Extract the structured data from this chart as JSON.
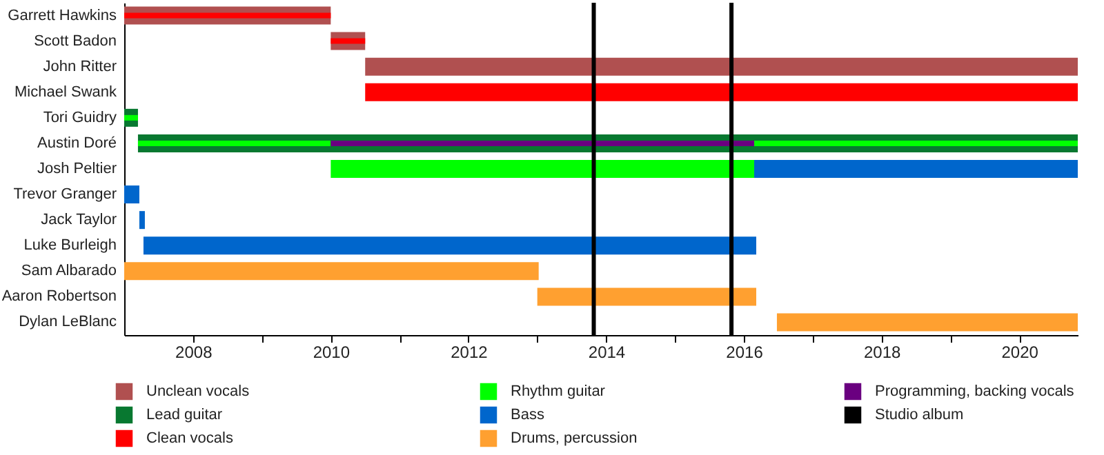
{
  "chart_data": {
    "type": "bar",
    "orientation": "horizontal",
    "legend": "bottom",
    "grid": false,
    "categories": [
      "Garrett Hawkins",
      "Scott Badon",
      "John Ritter",
      "Michael Swank",
      "Tori Guidry",
      "Austin Doré",
      "Josh Peltier",
      "Trevor Granger",
      "Jack Taylor",
      "Luke Burleigh",
      "Sam Albarado",
      "Aaron Robertson",
      "Dylan LeBlanc"
    ],
    "xlim": [
      2007,
      2020.85
    ],
    "xticks": [
      2008,
      {
        "value": 2009,
        "label": null
      },
      2010,
      {
        "value": 2011,
        "label": null
      },
      2012,
      {
        "value": 2013,
        "label": null
      },
      2014,
      {
        "value": 2015,
        "label": null
      },
      2016,
      {
        "value": 2017,
        "label": null
      },
      2018,
      {
        "value": 2019,
        "label": null
      },
      2020
    ],
    "series": [
      {
        "name": "Unclean vocals",
        "color": "#b05050",
        "base": [
          2007,
          2010,
          2010.5,
          null,
          null,
          null,
          null,
          null,
          null,
          null,
          null,
          null,
          null
        ],
        "values": [
          3,
          0.5,
          10.35,
          null,
          null,
          null,
          null,
          null,
          null,
          null,
          null,
          null,
          null
        ]
      },
      {
        "name": "Lead guitar",
        "color": "#087830",
        "base": [
          null,
          null,
          null,
          null,
          2007,
          2007.2,
          null,
          null,
          null,
          null,
          null,
          null,
          null
        ],
        "values": [
          null,
          null,
          null,
          null,
          0.2,
          13.65,
          null,
          null,
          null,
          null,
          null,
          null,
          null
        ]
      },
      {
        "name": "Clean vocals",
        "color": "#ff0000",
        "base": [
          2007,
          2010,
          null,
          2010.5,
          null,
          null,
          null,
          null,
          null,
          null,
          null,
          null,
          null
        ],
        "values": [
          3,
          0.5,
          null,
          10.35,
          null,
          null,
          null,
          null,
          null,
          null,
          null,
          null,
          null
        ]
      },
      {
        "name": "Rhythm guitar",
        "color": "#00ff00",
        "base": [
          null,
          null,
          null,
          null,
          2007,
          2007.2,
          2010,
          null,
          null,
          null,
          null,
          null,
          null
        ],
        "values": [
          null,
          null,
          null,
          null,
          0.2,
          2.8,
          6.15,
          null,
          null,
          null,
          null,
          null,
          null
        ]
      },
      {
        "name": "Bass",
        "color": "#0066cc",
        "base": [
          null,
          null,
          null,
          null,
          null,
          null,
          2016.15,
          2007,
          2007.22,
          2007.28,
          null,
          null,
          null
        ],
        "values": [
          null,
          null,
          null,
          null,
          null,
          null,
          4.7,
          0.22,
          0.08,
          8.9,
          null,
          null,
          null
        ]
      },
      {
        "name": "Drums, percussion",
        "color": "#ffa030",
        "base": [
          null,
          null,
          null,
          null,
          null,
          null,
          null,
          null,
          null,
          null,
          2007,
          2013,
          2016.48
        ],
        "values": [
          null,
          null,
          null,
          null,
          null,
          null,
          null,
          null,
          null,
          null,
          6.02,
          3.18,
          4.37
        ]
      },
      {
        "name": "Programming, backing vocals",
        "color": "#6a0080",
        "base": [
          null,
          null,
          null,
          null,
          null,
          2010,
          null,
          null,
          null,
          null,
          null,
          null,
          null
        ],
        "values": [
          null,
          null,
          null,
          null,
          null,
          6.15,
          null,
          null,
          null,
          null,
          null,
          null,
          null
        ]
      },
      {
        "color": "#00ff00",
        "base": [
          null,
          null,
          null,
          null,
          null,
          2016.15,
          null,
          null,
          null,
          null,
          null,
          null,
          null
        ],
        "values": [
          null,
          null,
          null,
          null,
          null,
          4.7,
          null,
          null,
          null,
          null,
          null,
          null,
          null
        ]
      }
    ],
    "ref_lines": [
      {
        "axis": "x",
        "value": 2013.82,
        "label": "Studio album",
        "color": "#000000"
      },
      {
        "axis": "x",
        "value": 2015.82,
        "color": "#000000"
      }
    ]
  }
}
